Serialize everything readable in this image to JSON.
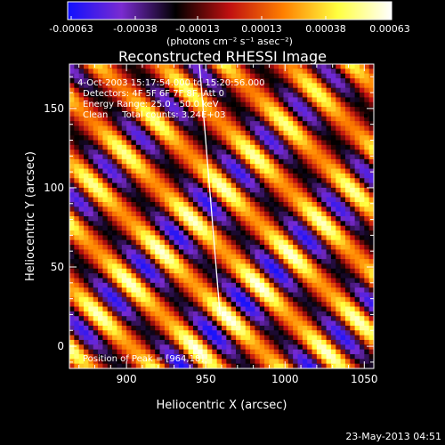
{
  "colorbar": {
    "min": -0.00063,
    "max": 0.00063,
    "tick_labels": [
      "-0.00063",
      "-0.00038",
      "-0.00013",
      "0.00013",
      "0.00038",
      "0.00063"
    ],
    "unit_label": "(photons cm⁻² s⁻¹ asec⁻²)",
    "colormap": [
      "#1010ff",
      "#7a2bd0",
      "#000000",
      "#c01010",
      "#ff8000",
      "#ffff40",
      "#ffffff"
    ]
  },
  "chart_data": {
    "type": "heatmap",
    "title": "Reconstructed RHESSI Image",
    "xlabel": "Heliocentric X (arcsec)",
    "ylabel": "Heliocentric Y (arcsec)",
    "xlim": [
      864,
      1056
    ],
    "ylim": [
      -14,
      178
    ],
    "xticks": [
      900,
      950,
      1000,
      1050
    ],
    "yticks": [
      0,
      50,
      100,
      150
    ],
    "grid": false,
    "limb_line": [
      [
        946,
        178
      ],
      [
        959,
        20
      ]
    ],
    "annotations": [
      "4-Oct-2003 15:17:54.000 to 15:20:56.000",
      "Detectors: 4F 5F 6F 7F 8F, Att 0",
      "Energy Range: 25.0 - 50.0 keV",
      "Clean     Total counts: 3.24E+03"
    ],
    "peak_label": "Position of Peak = [964,18]",
    "peak": [
      964,
      18
    ]
  },
  "timestamp": "23-May-2013 04:51"
}
